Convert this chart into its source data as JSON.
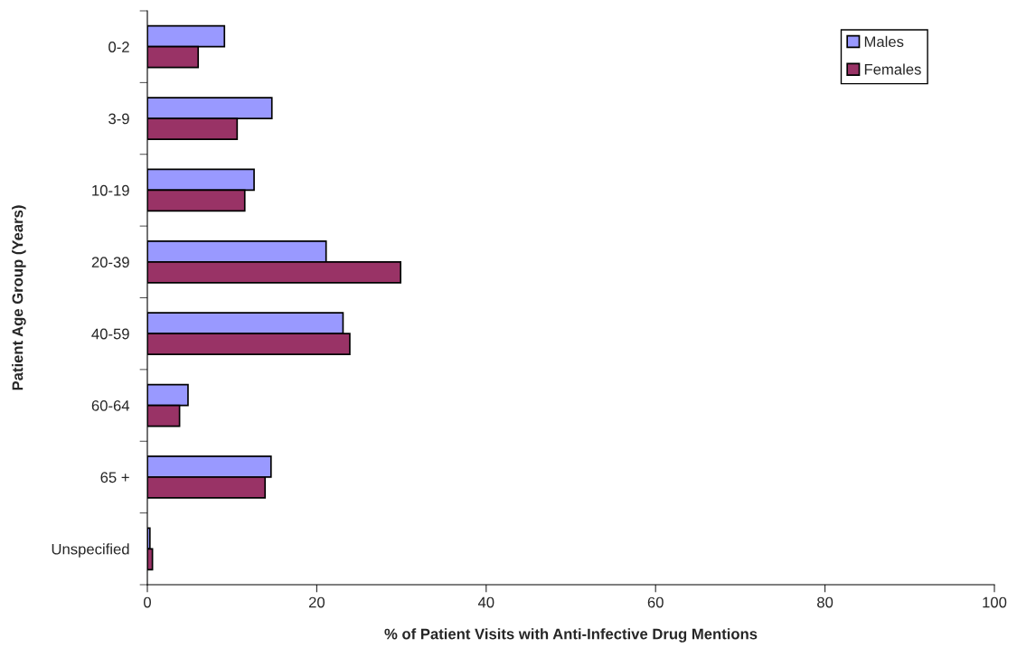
{
  "chart_data": {
    "type": "bar",
    "orientation": "horizontal",
    "xlabel": "% of Patient Visits with Anti-Infective Drug Mentions",
    "ylabel": "Patient Age Group (Years)",
    "categories": [
      "0-2",
      "3-9",
      "10-19",
      "20-39",
      "40-59",
      "60-64",
      "65 +",
      "Unspecified"
    ],
    "series": [
      {
        "name": "Males",
        "color": "#9999ff",
        "values": [
          9.1,
          14.7,
          12.6,
          21.1,
          23.1,
          4.8,
          14.6,
          0.3
        ]
      },
      {
        "name": "Females",
        "color": "#993366",
        "values": [
          6.0,
          10.6,
          11.5,
          29.9,
          23.9,
          3.8,
          13.9,
          0.6
        ]
      }
    ],
    "xlim": [
      0,
      100
    ],
    "xticks": [
      0,
      20,
      40,
      60,
      80,
      100
    ],
    "grid": false,
    "legend": "top right"
  }
}
